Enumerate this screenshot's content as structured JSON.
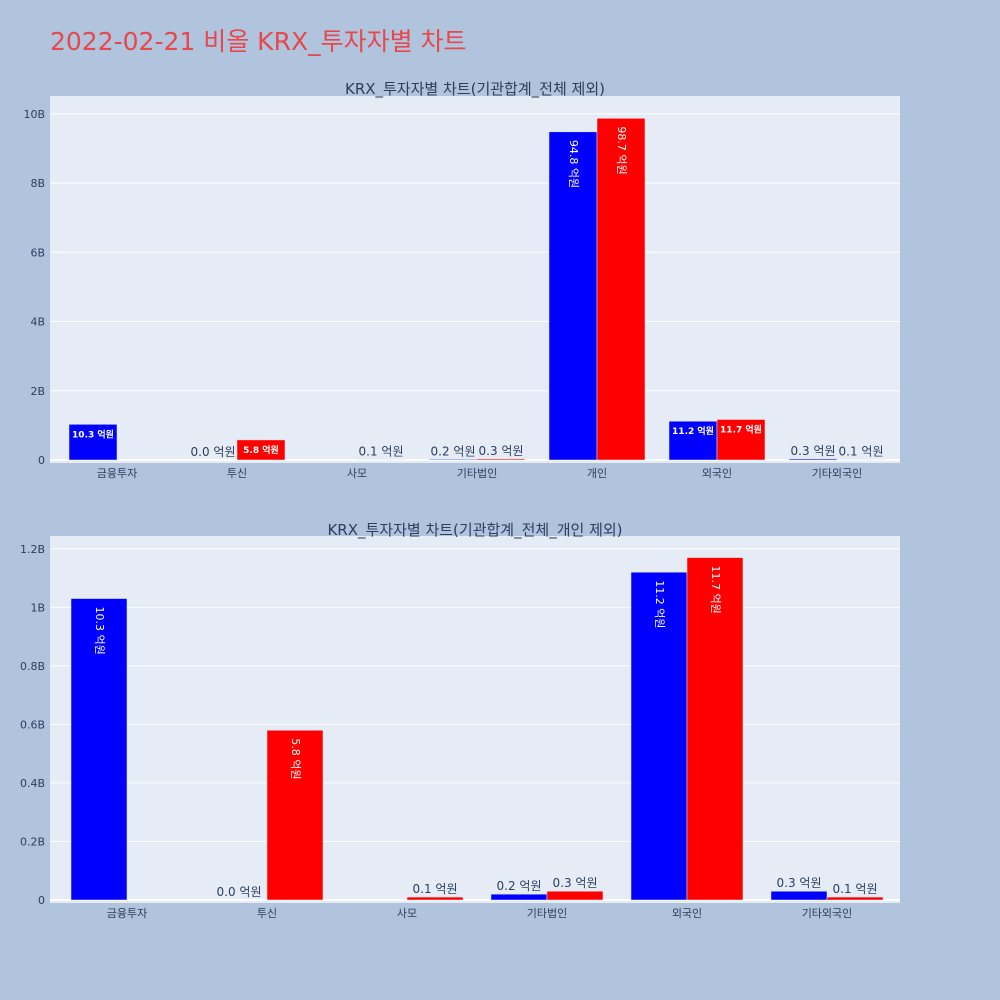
{
  "page": {
    "title": "2022-02-21 비올 KRX_투자자별 차트"
  },
  "chart_data": [
    {
      "type": "bar",
      "title": "KRX_투자자별 차트(기관합계_전체 제외)",
      "categories": [
        "금융투자",
        "투신",
        "사모",
        "기타법인",
        "개인",
        "외국인",
        "기타외국인"
      ],
      "series": [
        {
          "color": "#0000ff",
          "values": [
            1030000000,
            0,
            0,
            20000000,
            9480000000,
            1120000000,
            30000000
          ],
          "labels": [
            "10.3 억원",
            "0.0 억원",
            "",
            "0.2 억원",
            "94.8 억원",
            "11.2 억원",
            "0.3 억원"
          ]
        },
        {
          "color": "#ff0000",
          "values": [
            0,
            580000000,
            10000000,
            30000000,
            9870000000,
            1170000000,
            10000000
          ],
          "labels": [
            "",
            "5.8 억원",
            "0.1 억원",
            "0.3 억원",
            "98.7 억원",
            "11.7 억원",
            "0.1 억원"
          ]
        }
      ],
      "ylim": [
        0,
        10400000000
      ],
      "yticks": [
        0,
        2000000000,
        4000000000,
        6000000000,
        8000000000,
        10000000000
      ],
      "ytick_labels": [
        "0",
        "2B",
        "4B",
        "6B",
        "8B",
        "10B"
      ],
      "grid": true
    },
    {
      "type": "bar",
      "title": "KRX_투자자별 차트(기관합계_전체_개인 제외)",
      "categories": [
        "금융투자",
        "투신",
        "사모",
        "기타법인",
        "외국인",
        "기타외국인"
      ],
      "series": [
        {
          "color": "#0000ff",
          "values": [
            1030000000,
            0,
            0,
            20000000,
            1120000000,
            30000000
          ],
          "labels": [
            "10.3 억원",
            "0.0 억원",
            "",
            "0.2 억원",
            "11.2 억원",
            "0.3 억원"
          ]
        },
        {
          "color": "#ff0000",
          "values": [
            0,
            580000000,
            10000000,
            30000000,
            1170000000,
            10000000
          ],
          "labels": [
            "",
            "5.8 억원",
            "0.1 억원",
            "0.3 억원",
            "11.7 억원",
            "0.1 억원"
          ]
        }
      ],
      "ylim": [
        0,
        1230000000
      ],
      "yticks": [
        0,
        200000000,
        400000000,
        600000000,
        800000000,
        1000000000,
        1200000000
      ],
      "ytick_labels": [
        "0",
        "0.2B",
        "0.4B",
        "0.6B",
        "0.8B",
        "1B",
        "1.2B"
      ],
      "grid": true
    }
  ]
}
